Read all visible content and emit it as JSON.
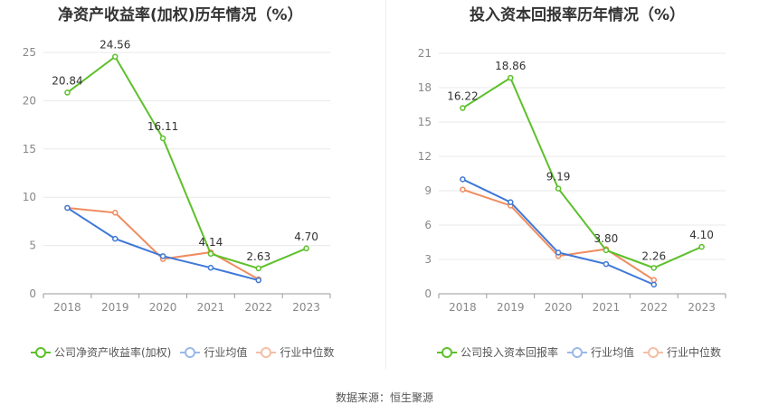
{
  "titles": {
    "left": "净资产收益率(加权)历年情况（%）",
    "right": "投入资本回报率历年情况（%）"
  },
  "source": "数据来源：恒生聚源",
  "colors": {
    "company": "#5dc02b",
    "avg": "#3f78d8",
    "median": "#ef8c5f",
    "grid": "#e8e8e8",
    "axis": "#999999"
  },
  "chart_data": [
    {
      "type": "line",
      "title": "净资产收益率(加权)历年情况（%）",
      "categories": [
        "2018",
        "2019",
        "2020",
        "2021",
        "2022",
        "2023"
      ],
      "ylim": [
        0,
        25
      ],
      "yticks": [
        0,
        5,
        10,
        15,
        20,
        25
      ],
      "grid": true,
      "legend_position": "bottom",
      "series": [
        {
          "name": "公司净资产收益率(加权)",
          "color": "#5dc02b",
          "values": [
            20.84,
            24.56,
            16.11,
            4.14,
            2.63,
            4.7
          ],
          "labels": [
            "20.84",
            "24.56",
            "16.11",
            "4.14",
            "2.63",
            "4.70"
          ]
        },
        {
          "name": "行业均值",
          "color": "#3f78d8",
          "values": [
            8.9,
            5.7,
            3.9,
            2.7,
            1.4,
            null
          ]
        },
        {
          "name": "行业中位数",
          "color": "#ef8c5f",
          "values": [
            8.9,
            8.4,
            3.6,
            4.3,
            1.5,
            null
          ]
        }
      ]
    },
    {
      "type": "line",
      "title": "投入资本回报率历年情况（%）",
      "categories": [
        "2018",
        "2019",
        "2020",
        "2021",
        "2022",
        "2023"
      ],
      "ylim": [
        0,
        21
      ],
      "yticks": [
        0,
        3,
        6,
        9,
        12,
        15,
        18,
        21
      ],
      "grid": true,
      "legend_position": "bottom",
      "series": [
        {
          "name": "公司投入资本回报率",
          "color": "#5dc02b",
          "values": [
            16.22,
            18.86,
            9.19,
            3.8,
            2.26,
            4.1
          ],
          "labels": [
            "16.22",
            "18.86",
            "9.19",
            "3.80",
            "2.26",
            "4.10"
          ]
        },
        {
          "name": "行业均值",
          "color": "#3f78d8",
          "values": [
            10.0,
            8.0,
            3.6,
            2.6,
            0.8,
            null
          ]
        },
        {
          "name": "行业中位数",
          "color": "#ef8c5f",
          "values": [
            9.1,
            7.7,
            3.3,
            3.9,
            1.2,
            null
          ]
        }
      ]
    }
  ]
}
